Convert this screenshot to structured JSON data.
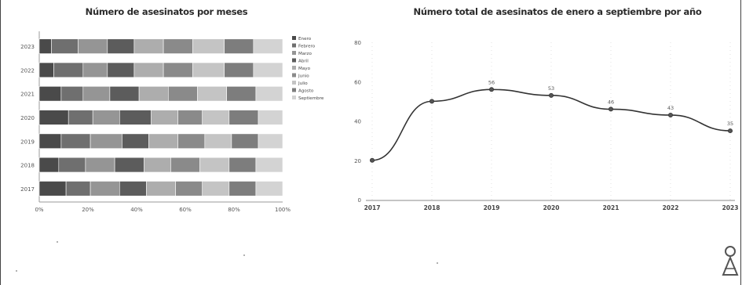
{
  "charts": {
    "left": {
      "title": "Número de asesinatos por meses"
    },
    "right": {
      "title": "Número total de asesinatos de enero a septiembre por año"
    }
  },
  "chart_data": [
    {
      "type": "bar",
      "stacked": true,
      "orientation": "horizontal",
      "normalized": true,
      "title": "Número de asesinatos por meses",
      "categories": [
        "2017",
        "2018",
        "2019",
        "2020",
        "2021",
        "2022",
        "2023"
      ],
      "xlim": [
        0,
        100
      ],
      "x_tick_labels": [
        "0%",
        "20%",
        "40%",
        "60%",
        "80%",
        "100%"
      ],
      "legend_position": "right",
      "series": [
        {
          "name": "Enero",
          "color": "#4a4a4a",
          "values": [
            11,
            8,
            9,
            12,
            9,
            6,
            5
          ]
        },
        {
          "name": "Febrero",
          "color": "#6f6f6f",
          "values": [
            10,
            11,
            12,
            10,
            9,
            12,
            11
          ]
        },
        {
          "name": "Marzo",
          "color": "#959595",
          "values": [
            12,
            12,
            13,
            11,
            11,
            10,
            12
          ]
        },
        {
          "name": "Abril",
          "color": "#5c5c5c",
          "values": [
            11,
            12,
            11,
            13,
            12,
            11,
            11
          ]
        },
        {
          "name": "Mayo",
          "color": "#adadad",
          "values": [
            12,
            11,
            12,
            11,
            12,
            12,
            12
          ]
        },
        {
          "name": "Junio",
          "color": "#8a8a8a",
          "values": [
            11,
            12,
            11,
            10,
            12,
            12,
            12
          ]
        },
        {
          "name": "Julio",
          "color": "#c4c4c4",
          "values": [
            11,
            12,
            11,
            11,
            12,
            13,
            13
          ]
        },
        {
          "name": "Agosto",
          "color": "#7d7d7d",
          "values": [
            11,
            11,
            11,
            12,
            12,
            12,
            12
          ]
        },
        {
          "name": "Septiembre",
          "color": "#d3d3d3",
          "values": [
            11,
            11,
            10,
            10,
            11,
            12,
            12
          ]
        }
      ]
    },
    {
      "type": "line",
      "title": "Número total de asesinatos de enero a septiembre por año",
      "x": [
        "2017",
        "2018",
        "2019",
        "2020",
        "2021",
        "2022",
        "2023"
      ],
      "y_tick_labels": [
        "0",
        "20",
        "40",
        "60",
        "80"
      ],
      "ylim": [
        0,
        80
      ],
      "series": [
        {
          "color": "#333333",
          "values": [
            20,
            50,
            56,
            53,
            46,
            43,
            35
          ]
        }
      ],
      "data_labels": [
        "",
        "",
        "56",
        "53",
        "46",
        "43",
        "35"
      ],
      "grid": false
    }
  ]
}
